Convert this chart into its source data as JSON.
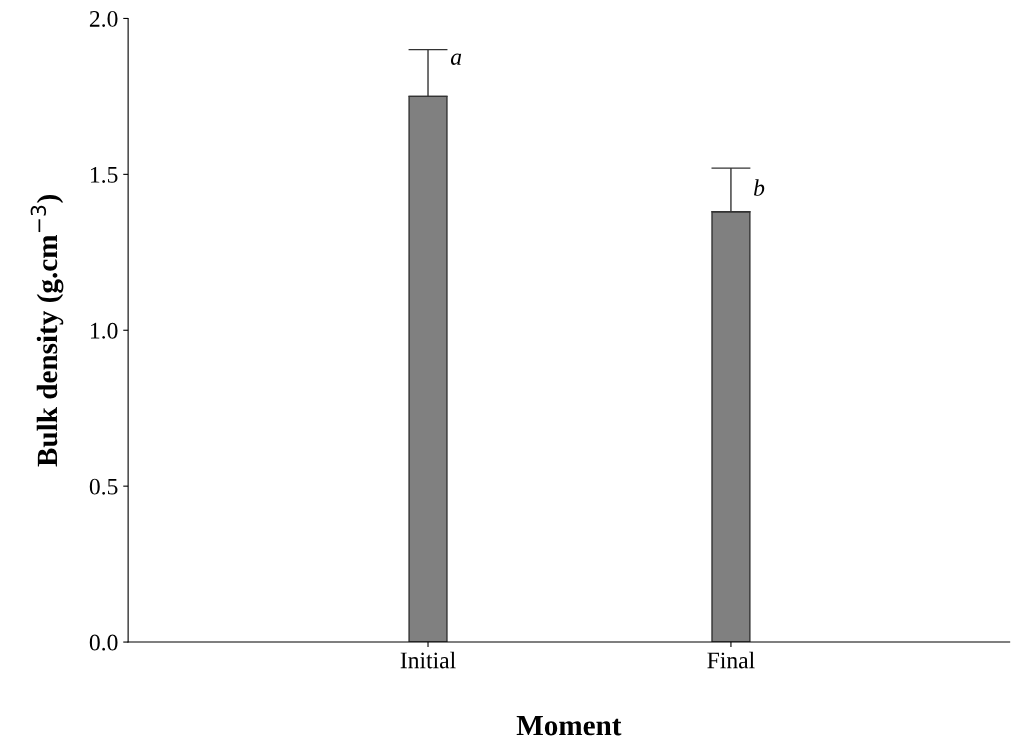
{
  "chart_data": {
    "type": "bar",
    "xlabel": "Moment",
    "ylabel": "Bulk density (g.cm$^{−3}$)",
    "categories": [
      "Initial",
      "Final"
    ],
    "values": [
      1.75,
      1.38
    ],
    "errors": [
      0.15,
      0.14
    ],
    "color": "#808080",
    "ylim": [
      0,
      2.0
    ],
    "yticks": [
      {
        "value": 0,
        "label": "0.0"
      },
      {
        "value": 0.5,
        "label": "0.5"
      },
      {
        "value": 1.0,
        "label": "1.0"
      },
      {
        "value": 1.5,
        "label": "1.5"
      },
      {
        "value": 2.0,
        "label": "2.0"
      }
    ],
    "annotations": [
      {
        "text": "a",
        "x": "Initial",
        "y": 1.87
      },
      {
        "text": "b",
        "x": "Final",
        "y": 1.45
      }
    ],
    "grid": false
  }
}
